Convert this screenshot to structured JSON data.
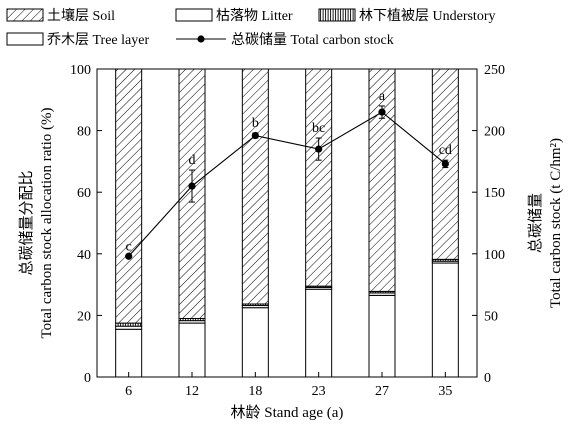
{
  "chart_data": {
    "type": "bar",
    "stacked": true,
    "percent_stacked": true,
    "categories": [
      "6",
      "12",
      "18",
      "23",
      "27",
      "35"
    ],
    "series": [
      {
        "name": "乔木层 Tree layer",
        "pattern": "empty",
        "values": [
          15.5,
          17.5,
          22.5,
          28.5,
          26.5,
          37.0
        ]
      },
      {
        "name": "枯落物 Litter",
        "pattern": "empty",
        "values": [
          1.0,
          0.8,
          0.7,
          0.6,
          0.8,
          0.6
        ]
      },
      {
        "name": "林下植被层 Understory",
        "pattern": "vertical-lines",
        "values": [
          1.0,
          0.7,
          0.5,
          0.4,
          0.5,
          0.6
        ]
      },
      {
        "name": "土壤层 Soil",
        "pattern": "diagonal-hatch",
        "values": [
          82.5,
          81.0,
          76.3,
          70.5,
          72.2,
          61.8
        ]
      }
    ],
    "line_series": {
      "name": "总碳储量 Total carbon stock",
      "axis": "right",
      "values": [
        98,
        155,
        196,
        185,
        215,
        173
      ],
      "errors": [
        0,
        13,
        2,
        9,
        5,
        3
      ],
      "labels": [
        "c",
        "d",
        "b",
        "bc",
        "a",
        "cd"
      ]
    },
    "xlabel": "林龄 Stand age (a)",
    "ylabel_lines": [
      "总碳储量分配比",
      "Total carbon stock allocation ratio (%)"
    ],
    "y2label_lines": [
      "总碳储量",
      "Total carbon stock (t C/hm²)"
    ],
    "ylim": [
      0,
      100
    ],
    "y2lim": [
      0,
      250
    ],
    "yticks": [
      "0",
      "20",
      "40",
      "60",
      "80",
      "100"
    ],
    "y2ticks": [
      "0",
      "50",
      "100",
      "150",
      "200",
      "250"
    ],
    "legend_position": "top",
    "grid": false
  }
}
